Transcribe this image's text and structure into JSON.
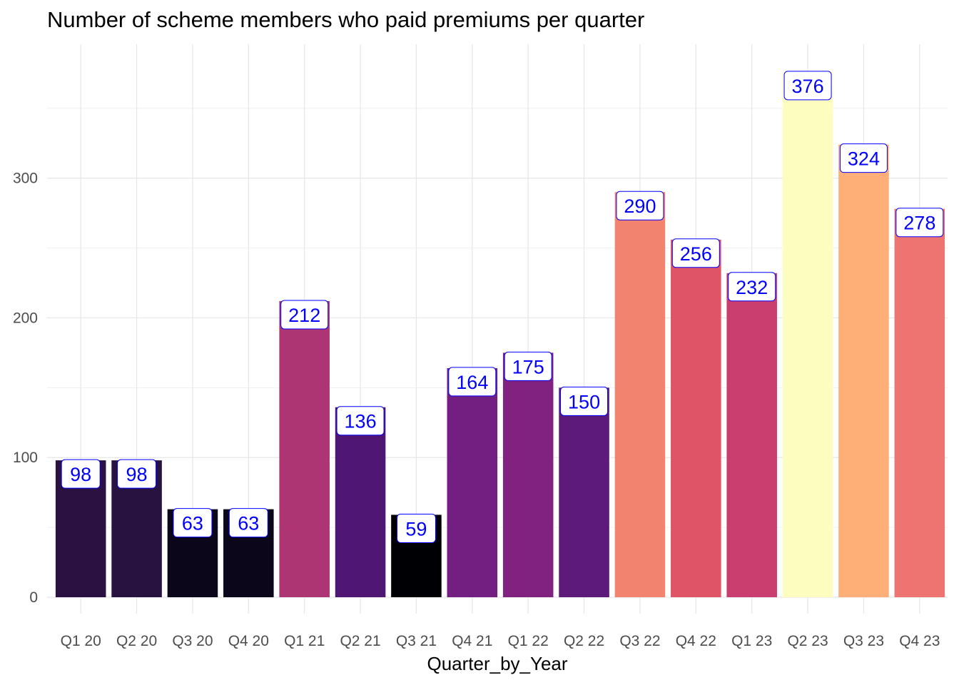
{
  "title": "Number of scheme members who paid premiums per quarter",
  "chart_data": {
    "type": "bar",
    "title": "Number of scheme members who paid premiums per quarter",
    "xlabel": "Quarter_by_Year",
    "ylabel": "",
    "categories": [
      "Q1 20",
      "Q2 20",
      "Q3 20",
      "Q4 20",
      "Q1 21",
      "Q2 21",
      "Q3 21",
      "Q4 21",
      "Q1 22",
      "Q2 22",
      "Q3 22",
      "Q4 22",
      "Q1 23",
      "Q2 23",
      "Q3 23",
      "Q4 23"
    ],
    "values": [
      98,
      98,
      63,
      63,
      212,
      136,
      59,
      164,
      175,
      150,
      290,
      256,
      232,
      376,
      324,
      278
    ],
    "data_labels": [
      "98",
      "98",
      "63",
      "63",
      "212",
      "136",
      "59",
      "164",
      "175",
      "150",
      "290",
      "256",
      "232",
      "376",
      "324",
      "278"
    ],
    "bar_colors": [
      "#2a1141",
      "#281240",
      "#0b0619",
      "#0b0619",
      "#ae3574",
      "#501673",
      "#000004",
      "#721f81",
      "#812281",
      "#5e1a7a",
      "#f2836e",
      "#e05467",
      "#c93d6f",
      "#fcfdbf",
      "#feaf77",
      "#ed7470"
    ],
    "label_color": "#0000ff",
    "ylim": [
      0,
      390
    ],
    "yticks": [
      0,
      100,
      200,
      300
    ],
    "yticklabels": [
      "0",
      "100",
      "200",
      "300"
    ],
    "grid": true,
    "legend": "none"
  }
}
